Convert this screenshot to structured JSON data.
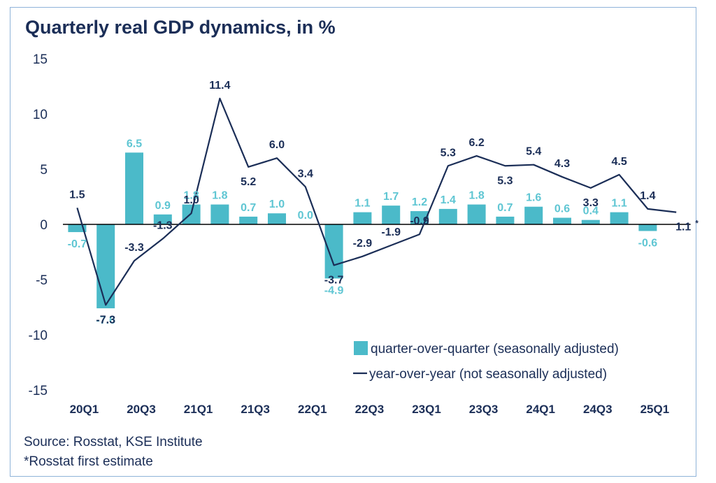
{
  "title": "Quarterly real GDP dynamics, in %",
  "source": "Source: Rosstat, KSE Institute",
  "note": "*Rosstat first estimate",
  "colors": {
    "bar": "#4bbac9",
    "bar_label": "#5fc6d3",
    "line": "#1b2e57",
    "text": "#1b2e57",
    "frame": "#8fb3d9"
  },
  "chart_data": {
    "type": "bar",
    "categories": [
      "20Q1",
      "20Q2",
      "20Q3",
      "20Q4",
      "21Q1",
      "21Q2",
      "21Q3",
      "21Q4",
      "22Q1",
      "22Q2",
      "22Q3",
      "22Q4",
      "23Q1",
      "23Q2",
      "23Q3",
      "23Q4",
      "24Q1",
      "24Q2",
      "24Q3",
      "24Q4",
      "25Q1",
      "25Q2"
    ],
    "xtick_labels": [
      "20Q1",
      "20Q3",
      "21Q1",
      "21Q3",
      "22Q1",
      "22Q3",
      "23Q1",
      "23Q3",
      "24Q1",
      "24Q3",
      "25Q1"
    ],
    "series": [
      {
        "name": "quarter-over-quarter (seasonally adjusted)",
        "type": "bar",
        "values": [
          -0.7,
          -7.6,
          6.5,
          0.9,
          1.8,
          1.8,
          0.7,
          1.0,
          0.0,
          -4.9,
          1.1,
          1.7,
          1.2,
          1.4,
          1.8,
          0.7,
          1.6,
          0.6,
          0.4,
          1.1,
          -0.6,
          null
        ],
        "labels": [
          "-0.7",
          "-7.6",
          "6.5",
          "0.9",
          "1.8",
          "1.8",
          "0.7",
          "1.0",
          "0.0",
          "-4.9",
          "1.1",
          "1.7",
          "1.2",
          "1.4",
          "1.8",
          "0.7",
          "1.6",
          "0.6",
          "0.4",
          "1.1",
          "-0.6",
          ""
        ]
      },
      {
        "name": "year-over-year (not seasonally adjusted)",
        "type": "line",
        "values": [
          1.5,
          -7.3,
          -3.3,
          -1.3,
          1.0,
          11.4,
          5.2,
          6.0,
          3.4,
          -3.7,
          -2.9,
          -1.9,
          -0.9,
          5.3,
          6.2,
          5.3,
          5.4,
          4.3,
          3.3,
          4.5,
          1.4,
          1.1
        ],
        "labels": [
          "1.5",
          "-7.3",
          "-3.3",
          "-1.3",
          "1.0",
          "11.4",
          "5.2",
          "6.0",
          "3.4",
          "-3.7",
          "-2.9",
          "-1.9",
          "-0.9",
          "5.3",
          "6.2",
          "5.3",
          "5.4",
          "4.3",
          "3.3",
          "4.5",
          "1.4",
          "1.1"
        ],
        "annotation": "*"
      }
    ],
    "yticks": [
      15,
      10,
      5,
      0,
      -5,
      -10,
      -15
    ],
    "ylim": [
      -15,
      15
    ],
    "grid": false,
    "legend": "bottom-right"
  }
}
